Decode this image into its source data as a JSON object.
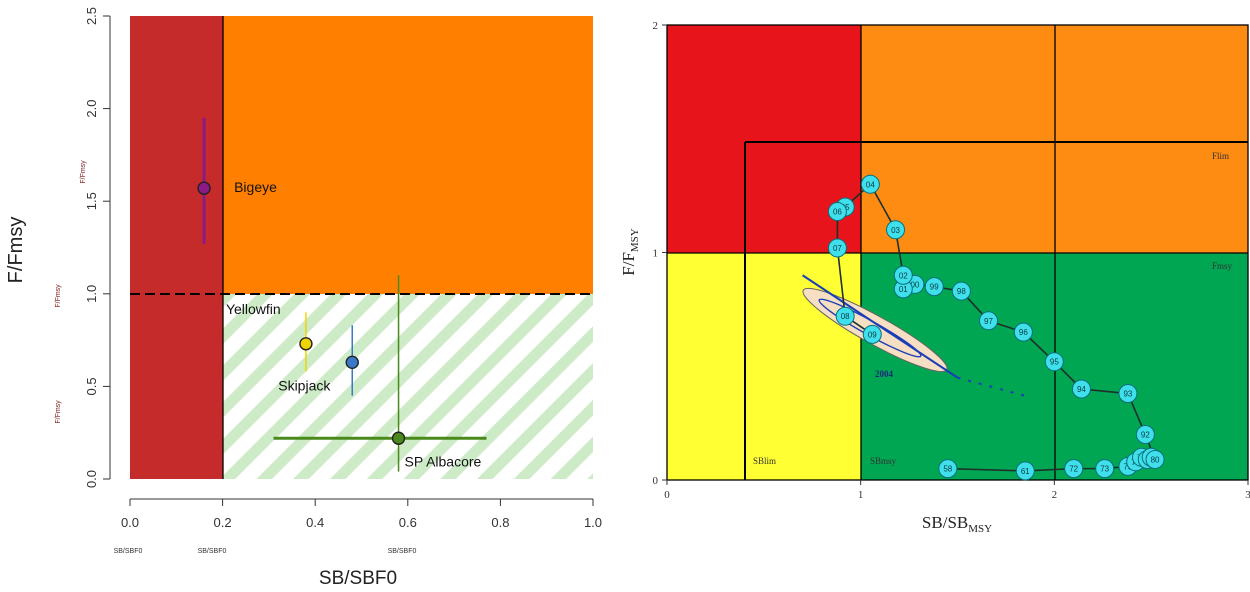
{
  "colors": {
    "darkred": "#c62b2b",
    "orange": "#ff8000",
    "hatch": "#cdebc6",
    "red": "#e8141b",
    "orange2": "#ff8c12",
    "yellow": "#ffff33",
    "green": "#00a651",
    "circle_fill": "#3fe0ec",
    "circle_stroke": "#0a6f7a",
    "ellipse_fill": "#f6dfc2"
  },
  "chart_data": [
    {
      "type": "scatter",
      "title": "",
      "xlabel": "SB/SBF0",
      "ylabel": "F/Fmsy",
      "xlim": [
        0,
        1
      ],
      "ylim": [
        0,
        2.5
      ],
      "x_ticks": [
        "0.0",
        "0.2",
        "0.4",
        "0.6",
        "0.8",
        "1.0"
      ],
      "y_ticks": [
        "0.0",
        "0.5",
        "1.0",
        "1.5",
        "2.0",
        "2.5"
      ],
      "limit_ref_point_x": 0.2,
      "fmsy_line_y": 1.0,
      "tiny_axis_notes": [
        "SB/SBF0",
        "SB/SBF0",
        "SB/SBF0",
        "F/Fmsy",
        "F/Fmsy",
        "F/Fmsy"
      ],
      "grid": false,
      "series": [
        {
          "name": "Bigeye",
          "x": 0.16,
          "y": 1.57,
          "x_range": null,
          "y_range": [
            1.27,
            1.95
          ],
          "color": "#8b1a86"
        },
        {
          "name": "Yellowfin",
          "x": 0.38,
          "y": 0.73,
          "x_range": null,
          "y_range": [
            0.58,
            0.9
          ],
          "color": "#f0d400"
        },
        {
          "name": "Skipjack",
          "x": 0.48,
          "y": 0.63,
          "x_range": null,
          "y_range": [
            0.45,
            0.83
          ],
          "color": "#3a78c8"
        },
        {
          "name": "SP Albacore",
          "x": 0.58,
          "y": 0.22,
          "x_range": [
            0.31,
            0.77
          ],
          "y_range": [
            0.04,
            1.1
          ],
          "color": "#4a8a1c"
        }
      ]
    },
    {
      "type": "line",
      "title": "",
      "xlabel": "SB/SB",
      "xlabel_sub": "MSY",
      "ylabel": "F/F",
      "ylabel_sub": "MSY",
      "xlim": [
        0,
        3
      ],
      "ylim": [
        0,
        2
      ],
      "x_ticks": [
        "0",
        "1",
        "2",
        "3"
      ],
      "y_ticks": [
        "0",
        "1",
        "2"
      ],
      "zone_labels": [
        "Flim",
        "Fmsy",
        "SBlim",
        "SBmsy"
      ],
      "ellipse_label": "2004",
      "grid": false,
      "trajectory": [
        {
          "year": "58",
          "x": 1.45,
          "y": 0.05
        },
        {
          "year": "61",
          "x": 1.85,
          "y": 0.04
        },
        {
          "year": "72",
          "x": 2.1,
          "y": 0.05
        },
        {
          "year": "73",
          "x": 2.26,
          "y": 0.05
        },
        {
          "year": "75",
          "x": 2.38,
          "y": 0.06
        },
        {
          "year": "76",
          "x": 2.42,
          "y": 0.08
        },
        {
          "year": "77",
          "x": 2.45,
          "y": 0.1
        },
        {
          "year": "78",
          "x": 2.48,
          "y": 0.09
        },
        {
          "year": "79",
          "x": 2.5,
          "y": 0.1
        },
        {
          "year": "80",
          "x": 2.52,
          "y": 0.09
        },
        {
          "year": "92",
          "x": 2.47,
          "y": 0.2
        },
        {
          "year": "93",
          "x": 2.38,
          "y": 0.38
        },
        {
          "year": "94",
          "x": 2.14,
          "y": 0.4
        },
        {
          "year": "95",
          "x": 2.0,
          "y": 0.52
        },
        {
          "year": "96",
          "x": 1.84,
          "y": 0.65
        },
        {
          "year": "97",
          "x": 1.66,
          "y": 0.7
        },
        {
          "year": "98",
          "x": 1.52,
          "y": 0.83
        },
        {
          "year": "99",
          "x": 1.38,
          "y": 0.85
        },
        {
          "year": "00",
          "x": 1.28,
          "y": 0.86
        },
        {
          "year": "01",
          "x": 1.22,
          "y": 0.84
        },
        {
          "year": "02",
          "x": 1.22,
          "y": 0.9
        },
        {
          "year": "03",
          "x": 1.18,
          "y": 1.1
        },
        {
          "year": "04",
          "x": 1.05,
          "y": 1.3
        },
        {
          "year": "05",
          "x": 0.92,
          "y": 1.2
        },
        {
          "year": "06",
          "x": 0.88,
          "y": 1.18
        },
        {
          "year": "07",
          "x": 0.88,
          "y": 1.02
        },
        {
          "year": "08",
          "x": 0.92,
          "y": 0.72
        },
        {
          "year": "09",
          "x": 1.06,
          "y": 0.64
        }
      ],
      "projection_line": [
        [
          0.7,
          0.9
        ],
        [
          1.5,
          0.45
        ]
      ],
      "projection_dashes": [
        [
          1.5,
          0.45
        ],
        [
          1.85,
          0.37
        ]
      ]
    }
  ]
}
